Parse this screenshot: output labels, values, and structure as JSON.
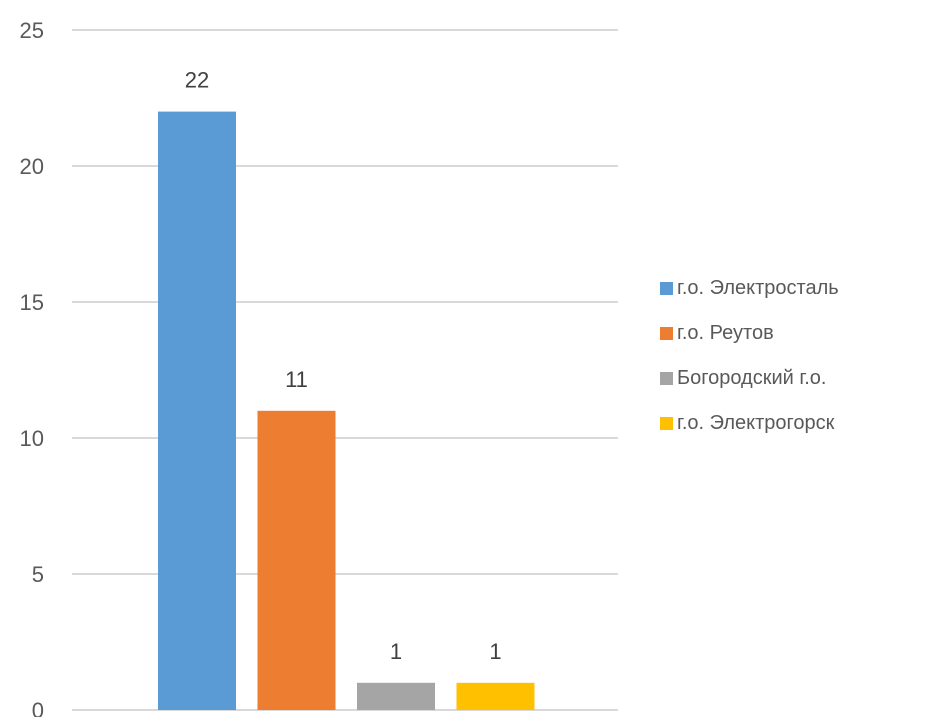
{
  "chart_data": {
    "type": "bar",
    "categories": [
      "г.о. Электросталь",
      "г.о. Реутов",
      "Богородский г.о.",
      "г.о. Электрогорск"
    ],
    "values": [
      22,
      11,
      1,
      1
    ],
    "data_labels": [
      "22",
      "11",
      "1",
      "1"
    ],
    "colors": [
      "#5b9bd5",
      "#ed7d31",
      "#a5a5a5",
      "#ffc000"
    ],
    "ylim": [
      0,
      25
    ],
    "yticks": [
      0,
      5,
      10,
      15,
      20,
      25
    ],
    "grid": true,
    "legend_position": "right",
    "title": "",
    "xlabel": "",
    "ylabel": ""
  },
  "legend": {
    "items": [
      {
        "label": "г.о. Электросталь",
        "color": "#5b9bd5"
      },
      {
        "label": "г.о. Реутов",
        "color": "#ed7d31"
      },
      {
        "label": "Богородский г.о.",
        "color": "#a5a5a5"
      },
      {
        "label": "г.о. Электрогорск",
        "color": "#ffc000"
      }
    ]
  },
  "style": {
    "grid_color": "#d9d9d9",
    "text_color": "#595959"
  }
}
